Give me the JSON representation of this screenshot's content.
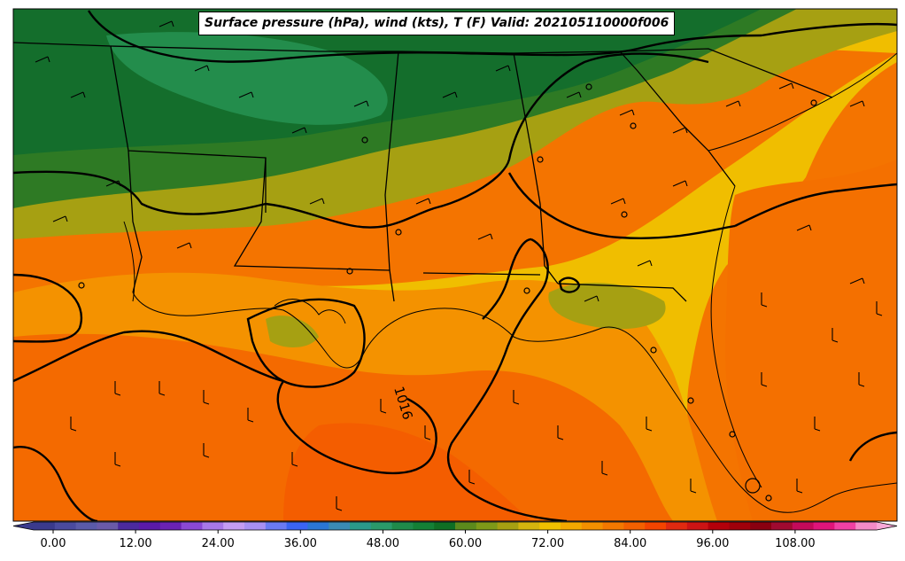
{
  "title": "Surface pressure (hPa), wind (kts), T (F) Valid: 202105110000f006",
  "contour_label": "1016",
  "colorbar": {
    "labels": [
      "0.00",
      "12.00",
      "24.00",
      "36.00",
      "48.00",
      "60.00",
      "72.00",
      "84.00",
      "96.00",
      "108.00"
    ],
    "colors": [
      "#3a3a8c",
      "#4a4a9e",
      "#5a5aa8",
      "#6a5aa8",
      "#4b2a9e",
      "#5a1aa8",
      "#6a22b4",
      "#8a48d4",
      "#a878e8",
      "#c49cf4",
      "#a890f4",
      "#6a7af4",
      "#3a64f4",
      "#2a76d4",
      "#3a8ab4",
      "#2a9a8a",
      "#2a9a6a",
      "#1f8a4a",
      "#148036",
      "#0f6e24",
      "#5c8a1c",
      "#7e9a18",
      "#a6a012",
      "#d4b40e",
      "#f0c000",
      "#f4a800",
      "#f49000",
      "#f47800",
      "#f46000",
      "#f44400",
      "#e02a10",
      "#cc1414",
      "#b4000a",
      "#a0000a",
      "#8a0010",
      "#a00a30",
      "#c40a5a",
      "#e0147a",
      "#f040a4",
      "#f48ac8"
    ],
    "over_color": "#f8a8d8",
    "under_color": "#3a3a8c"
  }
}
